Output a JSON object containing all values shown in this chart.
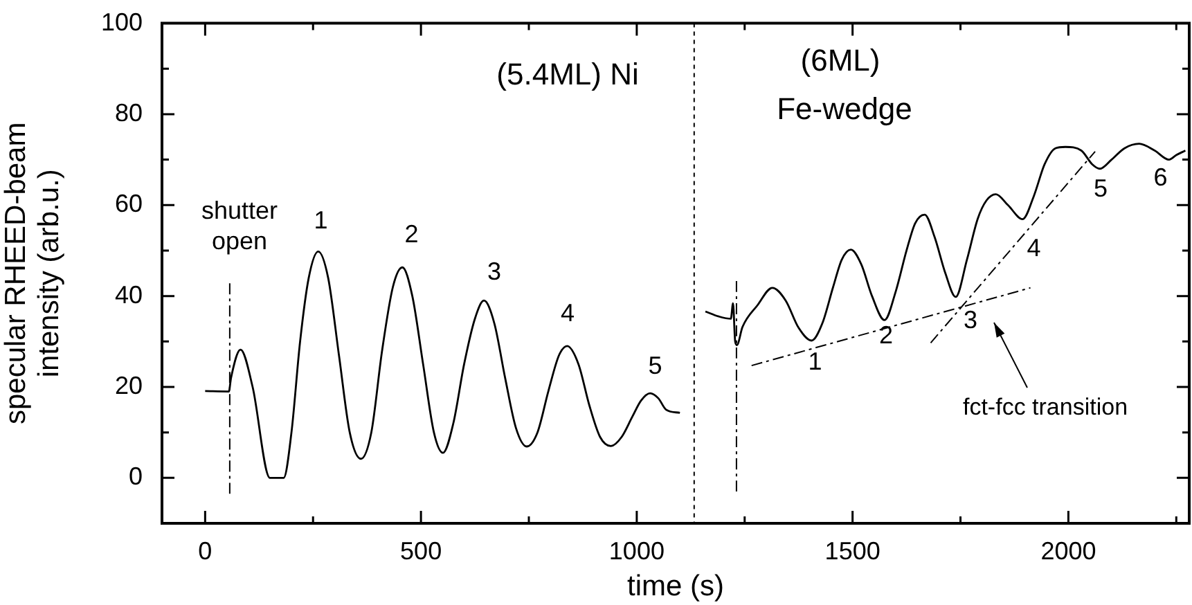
{
  "chart_data": {
    "type": "line",
    "xlabel": "time (s)",
    "ylabel": "specular RHEED-beam intensity (arb.u.)",
    "xlim": [
      -100,
      2280
    ],
    "xticks": [
      0,
      {
        "value": 250,
        "label": null
      },
      500,
      {
        "value": 750,
        "label": null
      },
      1000,
      {
        "value": 1250,
        "label": null
      },
      1500,
      {
        "value": 1750,
        "label": null
      },
      2000,
      {
        "value": 2250,
        "label": null
      }
    ],
    "ylim": [
      -10,
      100
    ],
    "yticks": [
      0,
      {
        "value": 10,
        "label": null
      },
      20,
      {
        "value": 30,
        "label": null
      },
      40,
      {
        "value": 50,
        "label": null
      },
      60,
      {
        "value": 70,
        "label": null
      },
      80,
      {
        "value": 90,
        "label": null
      },
      100
    ],
    "grid": false,
    "legend": false,
    "marker": "none",
    "series": [
      {
        "color": "#000000",
        "line_style": "solid",
        "x": [
          0,
          55,
          60,
          82,
          110,
          150,
          182,
          200,
          220,
          240,
          262,
          285,
          310,
          335,
          361,
          385,
          410,
          435,
          457,
          480,
          505,
          530,
          551,
          575,
          600,
          625,
          646,
          670,
          695,
          720,
          745,
          770,
          795,
          820,
          839,
          865,
          890,
          915,
          940,
          965,
          990,
          1010,
          1031,
          1050,
          1068,
          1100
        ],
        "values": [
          19.1,
          19,
          22,
          28.2,
          20,
          0,
          0,
          10,
          30,
          44,
          49.8,
          44,
          27,
          10,
          4.2,
          10,
          28,
          42,
          46.3,
          40,
          25,
          10,
          5.5,
          12,
          25,
          35,
          39,
          34,
          22,
          11,
          6.9,
          10,
          19,
          27,
          29,
          25,
          16,
          9,
          7,
          9,
          13.5,
          17,
          18.6,
          17.5,
          15,
          14.3
        ]
      },
      {
        "color": "#000000",
        "line_style": "solid",
        "x": [
          1159,
          1190,
          1218,
          1223,
          1228,
          1232,
          1245,
          1280,
          1314,
          1345,
          1375,
          1405,
          1430,
          1455,
          1475,
          1496,
          1520,
          1545,
          1574,
          1600,
          1625,
          1645,
          1667,
          1690,
          1715,
          1739,
          1765,
          1790,
          1810,
          1832,
          1860,
          1894,
          1920,
          1945,
          1970,
          1993,
          2030,
          2055,
          2073,
          2100,
          2130,
          2164,
          2200,
          2233,
          2250,
          2271
        ],
        "values": [
          36.6,
          35.5,
          35,
          38.4,
          30,
          29.2,
          33.2,
          38,
          41.8,
          39,
          33,
          30.2,
          34,
          42,
          48,
          50.2,
          47,
          40,
          34.7,
          41,
          50,
          56,
          57.9,
          53,
          45,
          39.8,
          48,
          57,
          61,
          62.4,
          60,
          56.9,
          62,
          69,
          72.5,
          72.8,
          72,
          69,
          68,
          70,
          72.5,
          73.5,
          72,
          70,
          71,
          72
        ]
      },
      {
        "color": "#000000",
        "line_style": "dashed",
        "x": [
          57,
          57
        ],
        "values": [
          -3.5,
          42.9
        ]
      },
      {
        "color": "#000000",
        "line_style": "dashed",
        "x": [
          1231,
          1231
        ],
        "values": [
          -3,
          43.3
        ]
      },
      {
        "color": "#000000",
        "line_style": "dashed",
        "x": [
          1266,
          1912
        ],
        "values": [
          24.7,
          41.8
        ]
      },
      {
        "color": "#000000",
        "line_style": "dashed",
        "x": [
          1681,
          2062
        ],
        "values": [
          29.7,
          71.8
        ]
      }
    ],
    "ref_lines": [
      {
        "axis": "x",
        "value": 1133,
        "line_style": "dotted",
        "color": "#000000"
      }
    ],
    "annotations": [
      "shutter open",
      "(5.4ML) Ni",
      "(6ML)",
      "Fe-wedge",
      "1",
      "2",
      "3",
      "4",
      "5",
      "1",
      "2",
      "3",
      "4",
      "5",
      "6",
      "fct-fcc transition"
    ]
  }
}
